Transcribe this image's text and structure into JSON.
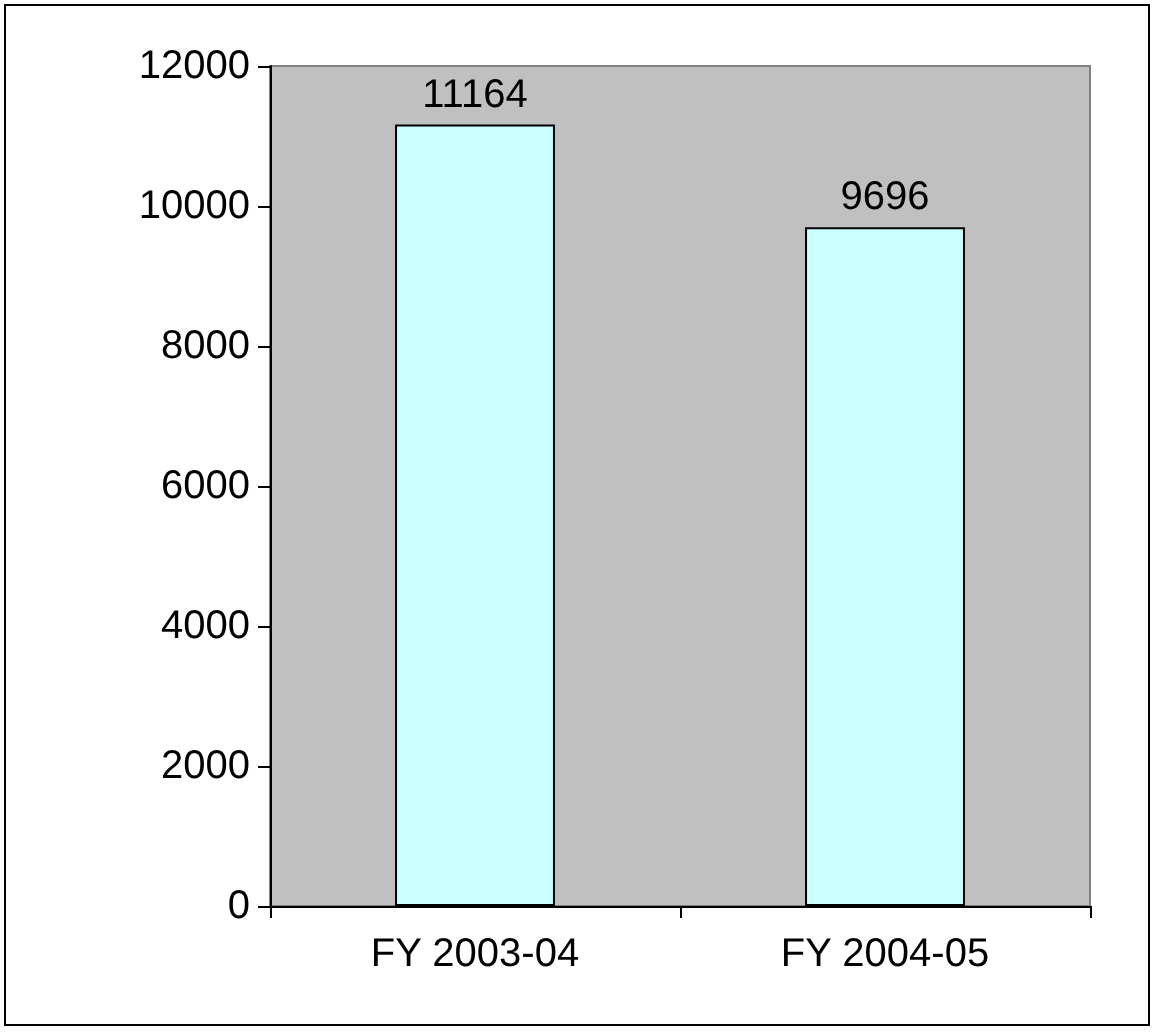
{
  "chart_data": {
    "type": "bar",
    "categories": [
      "FY 2003-04",
      "FY 2004-05"
    ],
    "values": [
      11164,
      9696
    ],
    "color": "#ccffff",
    "data_labels": true,
    "ylim": [
      0,
      12000
    ],
    "yticks": [
      0,
      2000,
      4000,
      6000,
      8000,
      10000,
      12000
    ],
    "grid": false
  }
}
